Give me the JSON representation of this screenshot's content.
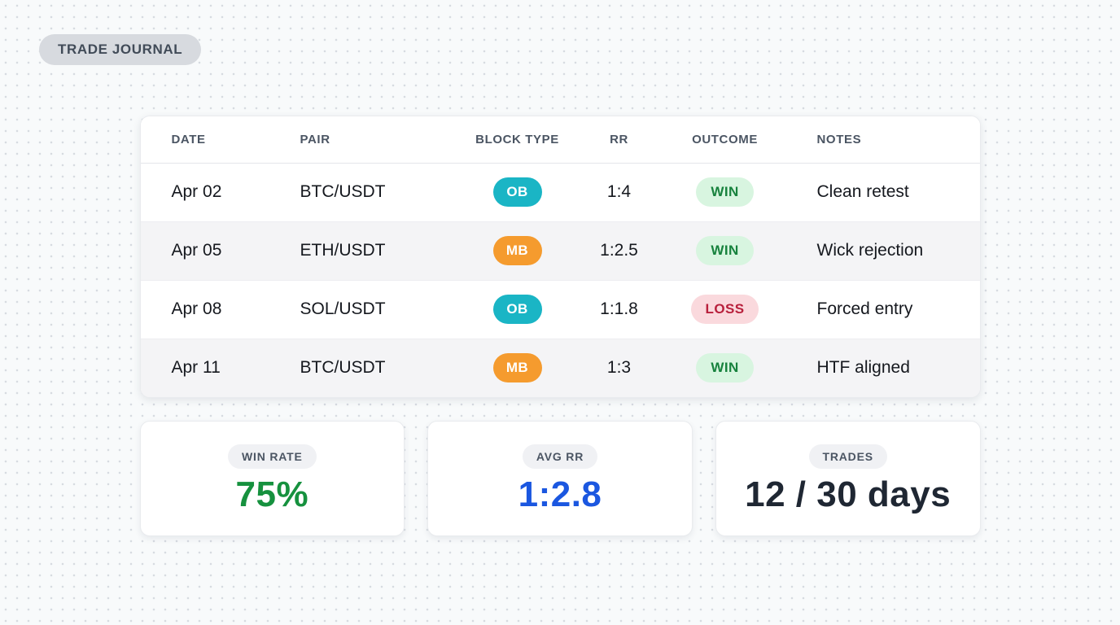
{
  "page": {
    "badge": "TRADE JOURNAL"
  },
  "table": {
    "columns": {
      "date": "DATE",
      "pair": "PAIR",
      "block_type": "BLOCK TYPE",
      "rr": "RR",
      "outcome": "OUTCOME",
      "notes": "NOTES"
    },
    "rows": [
      {
        "date": "Apr 02",
        "pair": "BTC/USDT",
        "block_type": "OB",
        "rr": "1:4",
        "outcome": "WIN",
        "notes": "Clean retest"
      },
      {
        "date": "Apr 05",
        "pair": "ETH/USDT",
        "block_type": "MB",
        "rr": "1:2.5",
        "outcome": "WIN",
        "notes": "Wick rejection"
      },
      {
        "date": "Apr 08",
        "pair": "SOL/USDT",
        "block_type": "OB",
        "rr": "1:1.8",
        "outcome": "LOSS",
        "notes": "Forced entry"
      },
      {
        "date": "Apr 11",
        "pair": "BTC/USDT",
        "block_type": "MB",
        "rr": "1:3",
        "outcome": "WIN",
        "notes": "HTF aligned"
      }
    ]
  },
  "stats": [
    {
      "label": "WIN RATE",
      "value": "75%",
      "color": "#16913e"
    },
    {
      "label": "AVG RR",
      "value": "1:2.8",
      "color": "#1b57e0"
    },
    {
      "label": "TRADES",
      "value": "12 / 30 days",
      "color": "#1f2733"
    }
  ],
  "colors": {
    "block_ob": "#1ab5c5",
    "block_mb": "#f59b2e",
    "outcome_win_bg": "#d8f5e0",
    "outcome_win_text": "#17823d",
    "outcome_loss_bg": "#fad9dd",
    "outcome_loss_text": "#b8203c",
    "background": "#f8fafb",
    "dot": "#d7dbe1"
  }
}
